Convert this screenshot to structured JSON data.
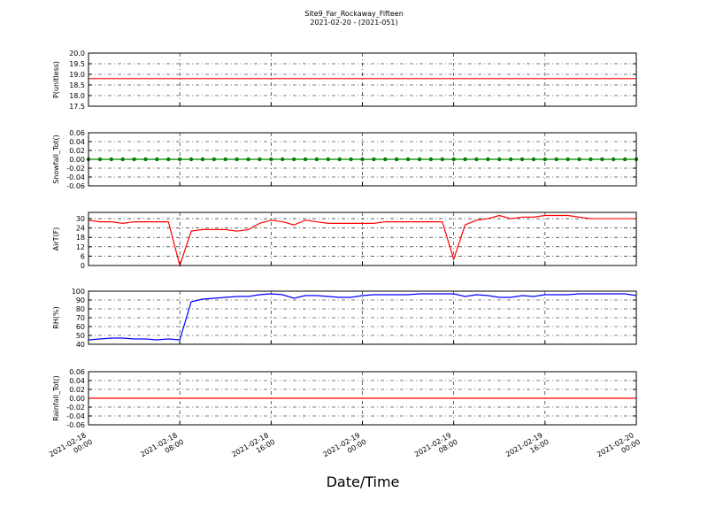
{
  "chart_data": {
    "type": "line",
    "title": "Site9_Far_Rockaway_Fifteen",
    "subtitle": "2021-02-20 - (2021-051)",
    "xlabel": "Date/Time",
    "grid": true,
    "xlim": [
      "2021-02-18 00:00",
      "2021-02-20 00:00"
    ],
    "xticks": [
      "2021-02-18 00:00",
      "2021-02-18 08:00",
      "2021-02-18 16:00",
      "2021-02-19 00:00",
      "2021-02-19 08:00",
      "2021-02-19 16:00",
      "2021-02-20 00:00"
    ],
    "x": [
      "2021-02-18 00:00",
      "2021-02-18 01:00",
      "2021-02-18 02:00",
      "2021-02-18 03:00",
      "2021-02-18 04:00",
      "2021-02-18 05:00",
      "2021-02-18 06:00",
      "2021-02-18 07:00",
      "2021-02-18 08:00",
      "2021-02-18 09:00",
      "2021-02-18 10:00",
      "2021-02-18 11:00",
      "2021-02-18 12:00",
      "2021-02-18 13:00",
      "2021-02-18 14:00",
      "2021-02-18 15:00",
      "2021-02-18 16:00",
      "2021-02-18 17:00",
      "2021-02-18 18:00",
      "2021-02-18 19:00",
      "2021-02-18 20:00",
      "2021-02-18 21:00",
      "2021-02-18 22:00",
      "2021-02-18 23:00",
      "2021-02-19 00:00",
      "2021-02-19 01:00",
      "2021-02-19 02:00",
      "2021-02-19 03:00",
      "2021-02-19 04:00",
      "2021-02-19 05:00",
      "2021-02-19 06:00",
      "2021-02-19 07:00",
      "2021-02-19 08:00",
      "2021-02-19 09:00",
      "2021-02-19 10:00",
      "2021-02-19 11:00",
      "2021-02-19 12:00",
      "2021-02-19 13:00",
      "2021-02-19 14:00",
      "2021-02-19 15:00",
      "2021-02-19 16:00",
      "2021-02-19 17:00",
      "2021-02-19 18:00",
      "2021-02-19 19:00",
      "2021-02-19 20:00",
      "2021-02-19 21:00",
      "2021-02-19 22:00",
      "2021-02-19 23:00",
      "2021-02-20 00:00"
    ],
    "panels": [
      {
        "ylabel": "P(unitless)",
        "ylim": [
          17.5,
          20
        ],
        "yticks": [
          {
            "value": 17.5,
            "label": "17.5"
          },
          {
            "value": 18,
            "label": "18.0"
          },
          {
            "value": 18.5,
            "label": "18.5"
          },
          {
            "value": 19,
            "label": "19.0"
          },
          {
            "value": 19.5,
            "label": "19.5"
          },
          {
            "value": 20,
            "label": "20.0"
          }
        ],
        "series": [
          {
            "color": "#ff0000",
            "values": [
              18.8,
              18.8,
              18.8,
              18.8,
              18.8,
              18.8,
              18.8,
              18.8,
              18.8,
              18.8,
              18.8,
              18.8,
              18.8,
              18.8,
              18.8,
              18.8,
              18.8,
              18.8,
              18.8,
              18.8,
              18.8,
              18.8,
              18.8,
              18.8,
              18.8,
              18.8,
              18.8,
              18.8,
              18.8,
              18.8,
              18.8,
              18.8,
              18.8,
              18.8,
              18.8,
              18.8,
              18.8,
              18.8,
              18.8,
              18.8,
              18.8,
              18.8,
              18.8,
              18.8,
              18.8,
              18.8,
              18.8,
              18.8,
              18.8
            ]
          }
        ]
      },
      {
        "ylabel": "Snowfall_Tot()",
        "ylim": [
          -0.06,
          0.06
        ],
        "yticks": [
          -0.06,
          -0.04,
          -0.02,
          {
            "value": 0,
            "label": "0.00"
          },
          0.02,
          0.04,
          0.06
        ],
        "series": [
          {
            "color": "#008000",
            "marker": "o",
            "values": [
              0,
              0,
              0,
              0,
              0,
              0,
              0,
              0,
              0,
              0,
              0,
              0,
              0,
              0,
              0,
              0,
              0,
              0,
              0,
              0,
              0,
              0,
              0,
              0,
              0,
              0,
              0,
              0,
              0,
              0,
              0,
              0,
              0,
              0,
              0,
              0,
              0,
              0,
              0,
              0,
              0,
              0,
              0,
              0,
              0,
              0,
              0,
              0,
              0
            ]
          }
        ]
      },
      {
        "ylabel": "AirT(F)",
        "ylim": [
          0,
          34
        ],
        "yticks": [
          0,
          6,
          12,
          18,
          24,
          30
        ],
        "series": [
          {
            "color": "#ff0000",
            "values": [
              29,
              28,
              28,
              27,
              28,
              28,
              28,
              28,
              0,
              22,
              23,
              23,
              23,
              22,
              23,
              27,
              29,
              28,
              26,
              29,
              28,
              27,
              27,
              27,
              27,
              27,
              28,
              28,
              28,
              28,
              28,
              28,
              4,
              26,
              29,
              30,
              32,
              30,
              31,
              31,
              32,
              32,
              32,
              31,
              30,
              30,
              30,
              30,
              30
            ]
          }
        ]
      },
      {
        "ylabel": "RH(%)",
        "ylim": [
          40,
          100
        ],
        "yticks": [
          40,
          50,
          60,
          70,
          80,
          90,
          100
        ],
        "series": [
          {
            "color": "#0000ff",
            "values": [
              45,
              46,
              47,
              47,
              46,
              46,
              45,
              46,
              45,
              88,
              91,
              92,
              93,
              94,
              94,
              96,
              97,
              96,
              92,
              95,
              95,
              94,
              93,
              93,
              95,
              96,
              96,
              96,
              96,
              97,
              97,
              97,
              97,
              94,
              96,
              95,
              93,
              93,
              95,
              94,
              96,
              96,
              96,
              97,
              97,
              97,
              97,
              97,
              95
            ]
          }
        ]
      },
      {
        "ylabel": "Rainfall_Tot()",
        "ylim": [
          -0.06,
          0.06
        ],
        "yticks": [
          -0.06,
          -0.04,
          -0.02,
          {
            "value": 0,
            "label": "0.00"
          },
          0.02,
          0.04,
          0.06
        ],
        "series": [
          {
            "color": "#ff0000",
            "values": [
              0,
              0,
              0,
              0,
              0,
              0,
              0,
              0,
              0,
              0,
              0,
              0,
              0,
              0,
              0,
              0,
              0,
              0,
              0,
              0,
              0,
              0,
              0,
              0,
              0,
              0,
              0,
              0,
              0,
              0,
              0,
              0,
              0,
              0,
              0,
              0,
              0,
              0,
              0,
              0,
              0,
              0,
              0,
              0,
              0,
              0,
              0,
              0,
              0
            ]
          }
        ]
      }
    ]
  }
}
